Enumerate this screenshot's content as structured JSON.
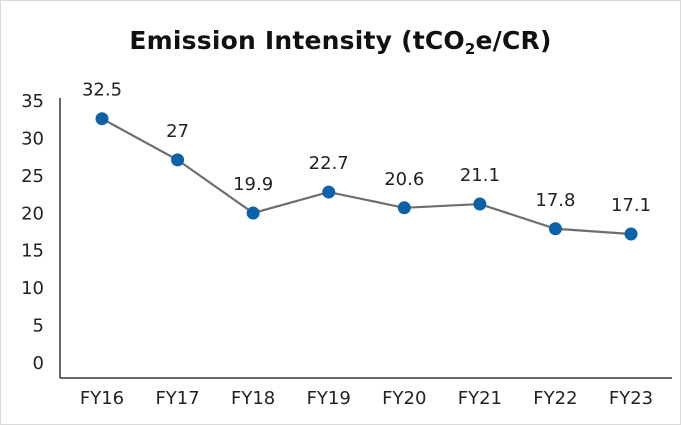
{
  "chart_data": {
    "type": "line",
    "title": {
      "prefix": "Emission Intensity (tCO",
      "subscript": "2",
      "suffix": "e/CR)"
    },
    "categories": [
      "FY16",
      "FY17",
      "FY18",
      "FY19",
      "FY20",
      "FY21",
      "FY22",
      "FY23"
    ],
    "series": [
      {
        "values": [
          32.5,
          27,
          19.9,
          22.7,
          20.6,
          21.1,
          17.8,
          17.1
        ]
      }
    ],
    "data_labels": [
      "32.5",
      "27",
      "19.9",
      "22.7",
      "20.6",
      "21.1",
      "17.8",
      "17.1"
    ],
    "y_ticks": [
      "0",
      "5",
      "10",
      "15",
      "20",
      "25",
      "30",
      "35"
    ],
    "ylim": [
      0,
      35
    ],
    "grid": false,
    "legend": "none",
    "colors": {
      "line": "#6e6e6e",
      "marker": "#0b62a8",
      "axis": "#333333"
    }
  }
}
